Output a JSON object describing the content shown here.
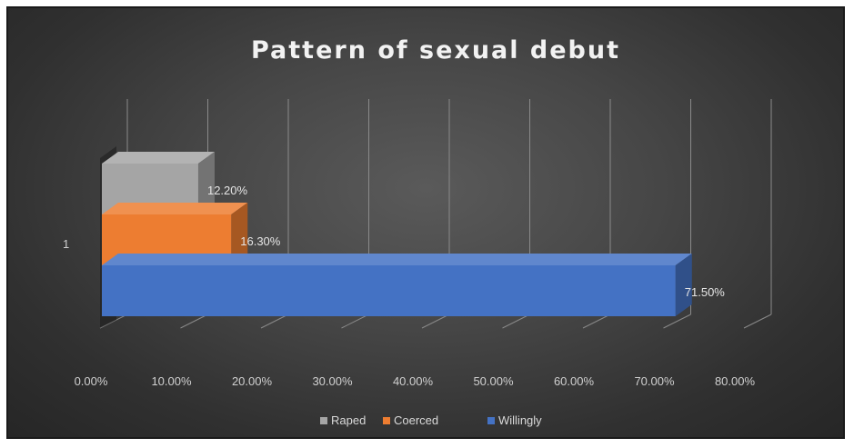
{
  "chart_data": {
    "type": "bar",
    "orientation": "horizontal",
    "three_d": true,
    "title": "Pattern of sexual debut",
    "categories": [
      "1"
    ],
    "series": [
      {
        "name": "Raped",
        "values": [
          12.2
        ],
        "label": "12.20%",
        "color": "#a5a5a5"
      },
      {
        "name": "Coerced",
        "values": [
          16.3
        ],
        "label": "16.30%",
        "color": "#ed7d31"
      },
      {
        "name": "Willingly",
        "values": [
          71.5
        ],
        "label": "71.50%",
        "color": "#4472c4"
      }
    ],
    "x_ticks": [
      "0.00%",
      "10.00%",
      "20.00%",
      "30.00%",
      "40.00%",
      "50.00%",
      "60.00%",
      "70.00%",
      "80.00%"
    ],
    "xlim": [
      0,
      80
    ],
    "grid": true,
    "legend_position": "bottom"
  }
}
